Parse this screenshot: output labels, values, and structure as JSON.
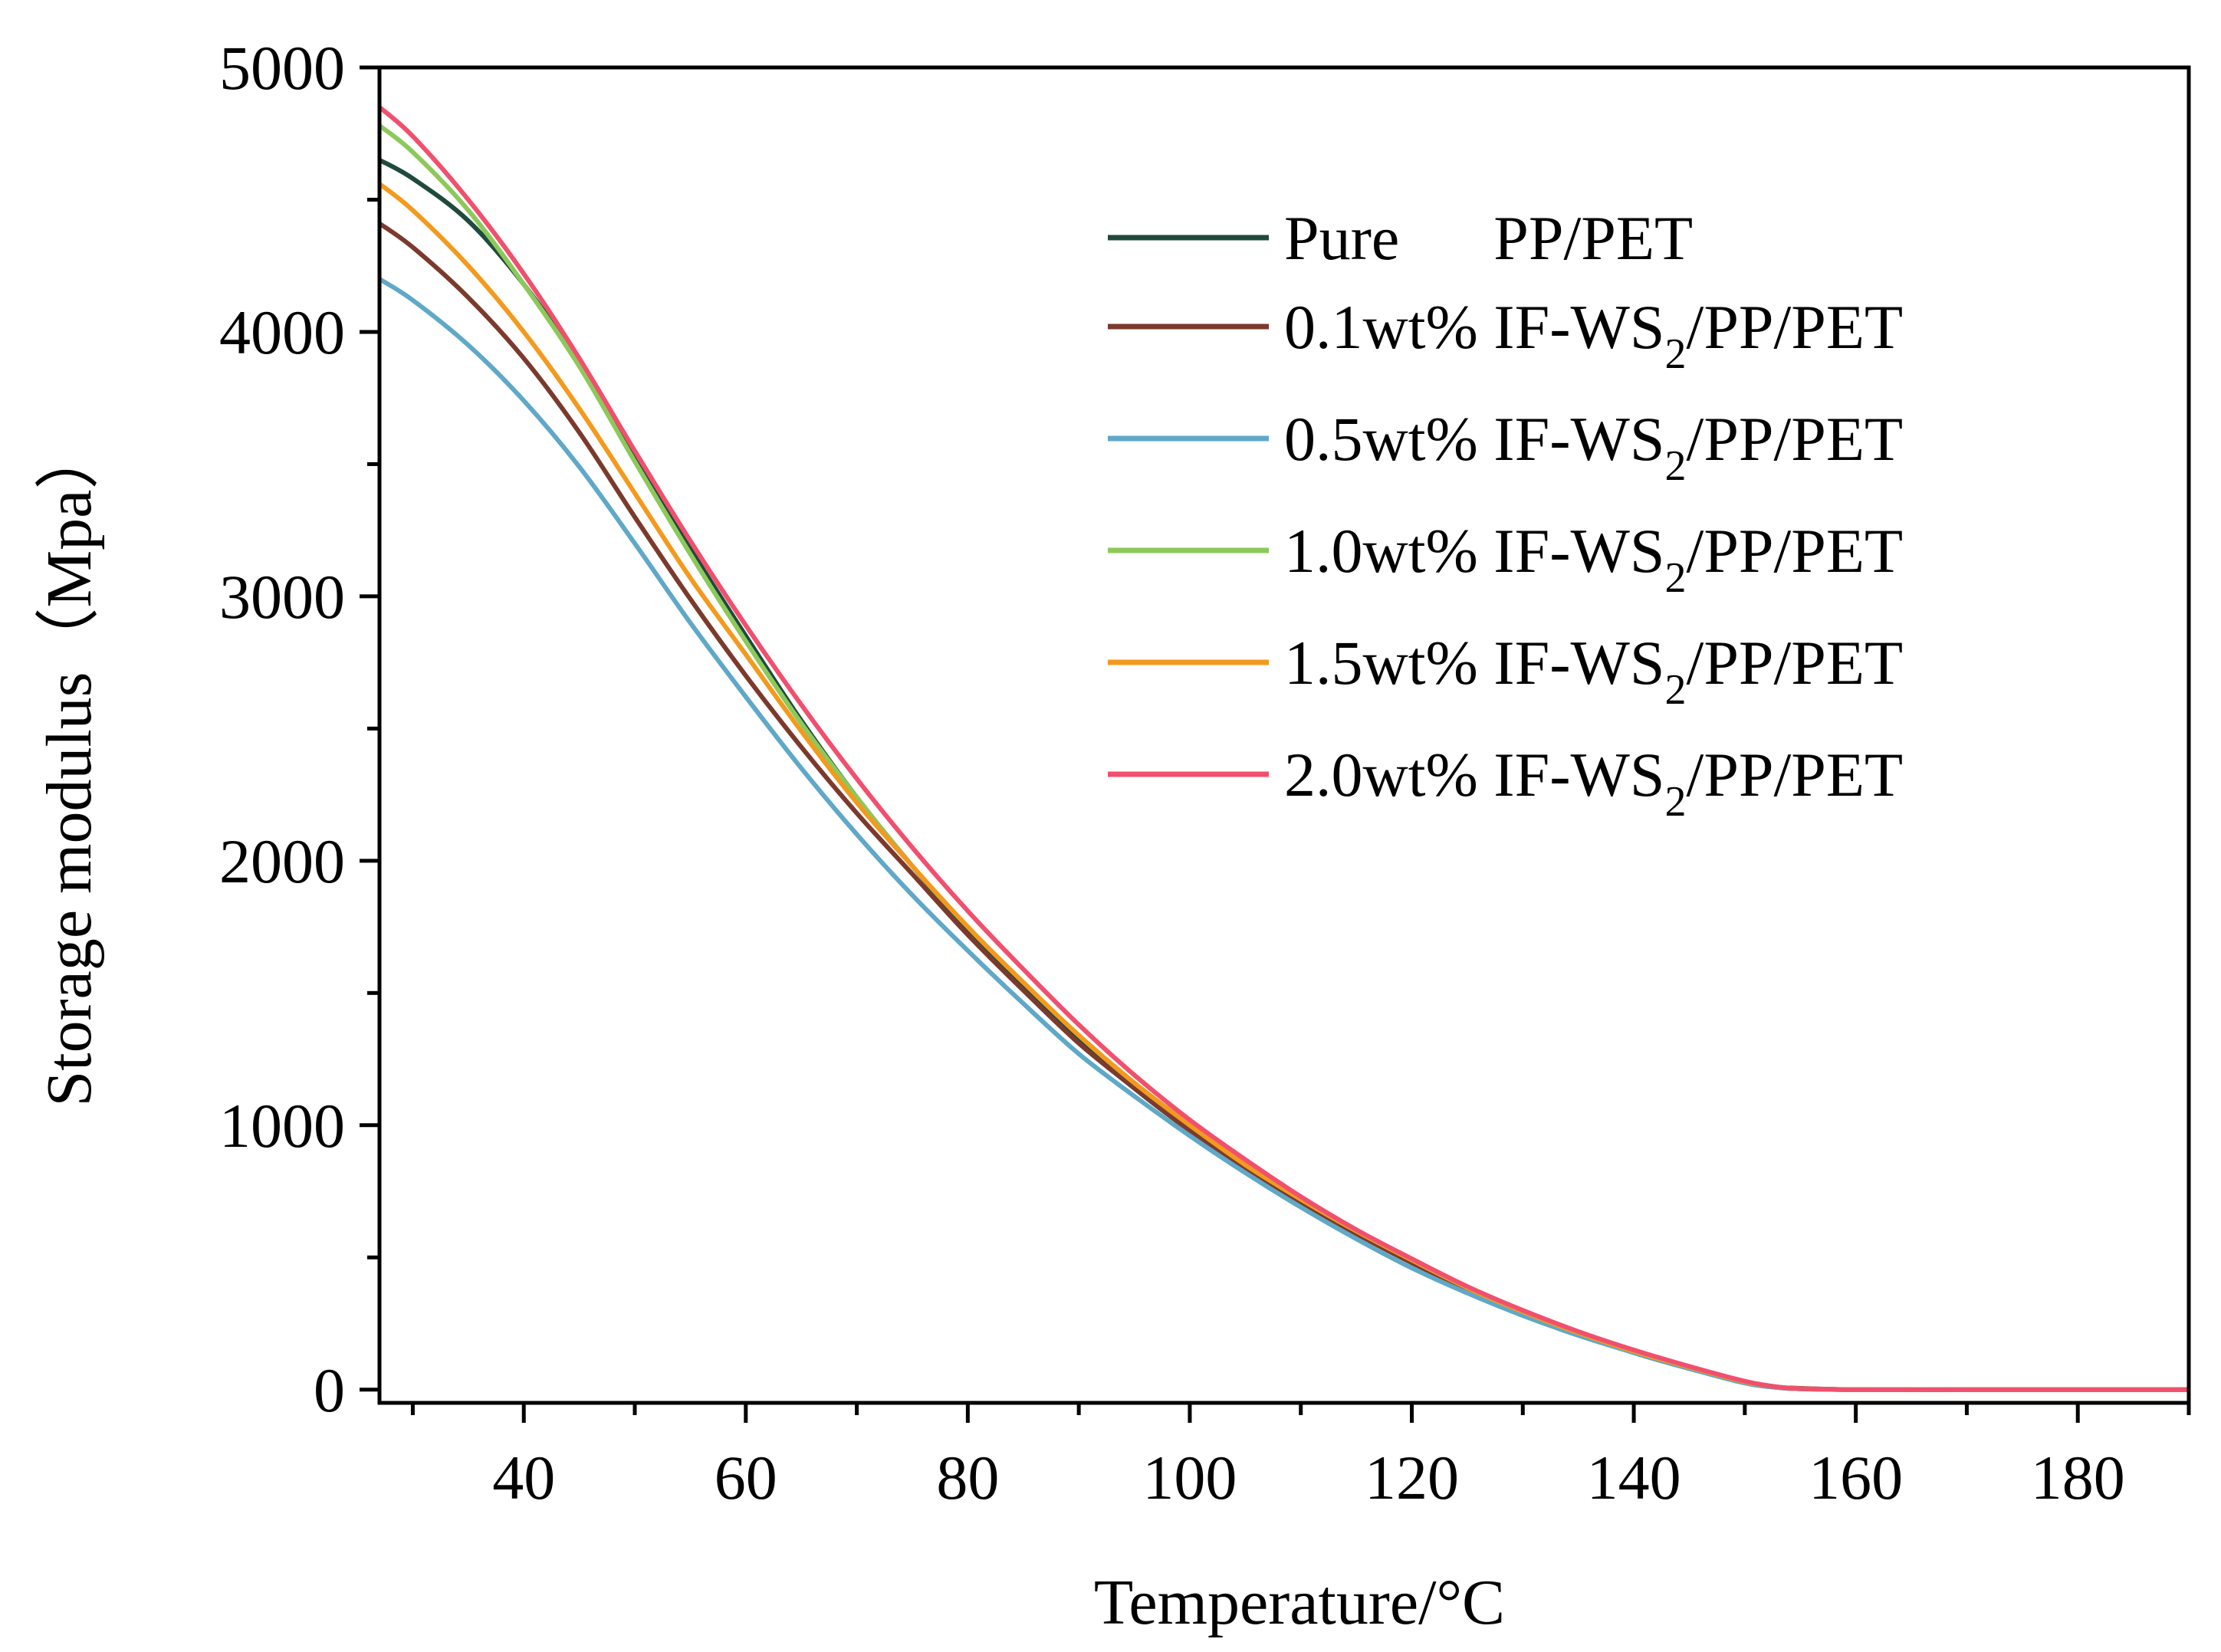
{
  "chart_data": {
    "type": "line",
    "title": "",
    "xlabel": "Temperature/°C",
    "ylabel": "Storage modulus（Mpa）",
    "xlim": [
      27,
      190
    ],
    "ylim": [
      -50,
      5000
    ],
    "x_ticks": [
      40,
      60,
      80,
      100,
      120,
      140,
      160,
      180
    ],
    "x_tick_labels": [
      "40",
      "60",
      "80",
      "100",
      "120",
      "140",
      "160",
      "180"
    ],
    "y_ticks": [
      0,
      1000,
      2000,
      3000,
      4000,
      5000
    ],
    "y_tick_labels": [
      "0",
      "1000",
      "2000",
      "3000",
      "4000",
      "5000"
    ],
    "grid": false,
    "legend_position": "top-right",
    "series": [
      {
        "name": "Pure      PP/PET",
        "label_main": "Pure      PP/PET",
        "color": "#1f4a3d",
        "x": [
          27,
          30,
          35,
          40,
          45,
          50,
          55,
          60,
          65,
          70,
          75,
          80,
          85,
          90,
          95,
          100,
          105,
          110,
          115,
          120,
          125,
          130,
          135,
          140,
          145,
          150,
          153,
          155,
          160,
          170,
          180,
          190
        ],
        "y": [
          4650,
          4580,
          4420,
          4180,
          3880,
          3530,
          3180,
          2850,
          2530,
          2240,
          1980,
          1740,
          1520,
          1320,
          1140,
          980,
          840,
          710,
          590,
          480,
          380,
          290,
          210,
          140,
          80,
          30,
          10,
          5,
          0,
          0,
          0,
          0
        ]
      },
      {
        "name": "0.1wt% IF-WS2/PP/PET",
        "label_main": "0.1wt% IF-WS",
        "label_sub": "2",
        "label_rest": "/PP/PET",
        "color": "#7b3a2c",
        "x": [
          27,
          30,
          35,
          40,
          45,
          50,
          55,
          60,
          65,
          70,
          75,
          80,
          85,
          90,
          95,
          100,
          105,
          110,
          115,
          120,
          125,
          130,
          135,
          140,
          145,
          150,
          153,
          155,
          160,
          170,
          180,
          190
        ],
        "y": [
          4410,
          4320,
          4130,
          3900,
          3620,
          3300,
          2990,
          2700,
          2430,
          2180,
          1950,
          1720,
          1510,
          1310,
          1140,
          980,
          840,
          710,
          590,
          480,
          380,
          290,
          210,
          140,
          80,
          25,
          8,
          3,
          0,
          0,
          0,
          0
        ]
      },
      {
        "name": "0.5wt% IF-WS2/PP/PET",
        "label_main": "0.5wt% IF-WS",
        "label_sub": "2",
        "label_rest": "/PP/PET",
        "color": "#5fa8c8",
        "x": [
          27,
          30,
          35,
          40,
          45,
          50,
          55,
          60,
          65,
          70,
          75,
          80,
          85,
          90,
          95,
          100,
          105,
          110,
          115,
          120,
          125,
          130,
          135,
          140,
          145,
          150,
          153,
          155,
          160,
          170,
          180,
          190
        ],
        "y": [
          4200,
          4120,
          3950,
          3740,
          3490,
          3200,
          2900,
          2620,
          2350,
          2100,
          1870,
          1660,
          1460,
          1270,
          1110,
          960,
          820,
          690,
          570,
          460,
          365,
          280,
          205,
          140,
          80,
          25,
          8,
          3,
          0,
          0,
          0,
          0
        ]
      },
      {
        "name": "1.0wt% IF-WS2/PP/PET",
        "label_main": "1.0wt% IF-WS",
        "label_sub": "2",
        "label_rest": "/PP/PET",
        "color": "#8dc95a",
        "x": [
          27,
          30,
          35,
          40,
          45,
          50,
          55,
          60,
          65,
          70,
          75,
          80,
          85,
          90,
          95,
          100,
          105,
          110,
          115,
          120,
          125,
          130,
          135,
          140,
          145,
          150,
          153,
          155,
          160,
          170,
          180,
          190
        ],
        "y": [
          4780,
          4680,
          4460,
          4180,
          3870,
          3510,
          3160,
          2830,
          2520,
          2240,
          1980,
          1750,
          1540,
          1340,
          1160,
          1000,
          850,
          720,
          600,
          490,
          385,
          295,
          215,
          145,
          85,
          30,
          10,
          4,
          0,
          0,
          0,
          0
        ]
      },
      {
        "name": "1.5wt% IF-WS2/PP/PET",
        "label_main": "1.5wt% IF-WS",
        "label_sub": "2",
        "label_rest": "/PP/PET",
        "color": "#f39a1e",
        "x": [
          27,
          30,
          35,
          40,
          45,
          50,
          55,
          60,
          65,
          70,
          75,
          80,
          85,
          90,
          95,
          100,
          105,
          110,
          115,
          120,
          125,
          130,
          135,
          140,
          145,
          150,
          153,
          155,
          160,
          170,
          180,
          190
        ],
        "y": [
          4560,
          4460,
          4250,
          4000,
          3710,
          3390,
          3070,
          2780,
          2490,
          2220,
          1980,
          1750,
          1540,
          1340,
          1160,
          1000,
          850,
          720,
          600,
          490,
          385,
          295,
          215,
          145,
          85,
          30,
          10,
          4,
          0,
          0,
          0,
          0
        ]
      },
      {
        "name": "2.0wt% IF-WS2/PP/PET",
        "label_main": "2.0wt% IF-WS",
        "label_sub": "2",
        "label_rest": "/PP/PET",
        "color": "#f0506e",
        "x": [
          27,
          30,
          35,
          40,
          45,
          50,
          55,
          60,
          65,
          70,
          75,
          80,
          85,
          90,
          95,
          100,
          105,
          110,
          115,
          120,
          125,
          130,
          135,
          140,
          145,
          150,
          153,
          155,
          160,
          170,
          180,
          190
        ],
        "y": [
          4850,
          4740,
          4500,
          4220,
          3900,
          3550,
          3210,
          2890,
          2590,
          2310,
          2050,
          1810,
          1590,
          1380,
          1190,
          1020,
          870,
          730,
          605,
          495,
          390,
          300,
          220,
          150,
          88,
          32,
          10,
          4,
          0,
          0,
          0,
          0
        ]
      }
    ]
  }
}
